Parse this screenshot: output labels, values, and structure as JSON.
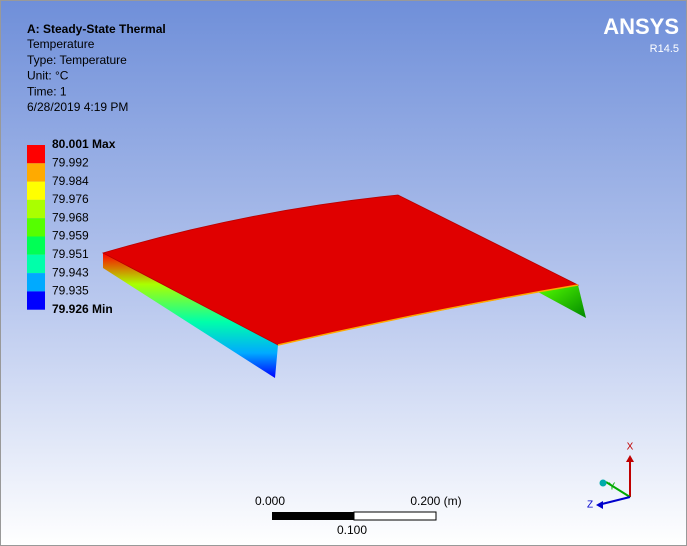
{
  "header": {
    "title": "A: Steady-State Thermal",
    "lines": [
      "Temperature",
      "Type: Temperature",
      "Unit: °C",
      "Time: 1",
      "6/28/2019 4:19 PM"
    ]
  },
  "logo": {
    "name": "ANSYS",
    "version": "R14.5"
  },
  "legend": {
    "labels": [
      "80.001 Max",
      "79.992",
      "79.984",
      "79.976",
      "79.968",
      "79.959",
      "79.951",
      "79.943",
      "79.935",
      "79.926 Min"
    ],
    "colors": [
      "#ff0000",
      "#ffaa00",
      "#ffff00",
      "#aaff00",
      "#55ff00",
      "#00ff55",
      "#00ffaa",
      "#00aaff",
      "#0000ff"
    ]
  },
  "scale_bar": {
    "start": "0.000",
    "end": "0.200 (m)",
    "middle": "0.100"
  },
  "triad": {
    "x": "X",
    "y": "Y",
    "z": "Z"
  }
}
